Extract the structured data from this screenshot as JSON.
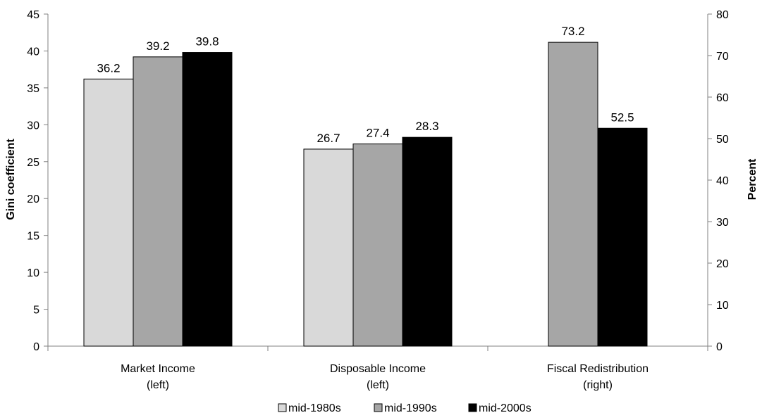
{
  "chart_data": {
    "type": "bar",
    "categories": [
      {
        "line1": "Market Income",
        "line2": "(left)",
        "axis": "left"
      },
      {
        "line1": "Disposable Income",
        "line2": "(left)",
        "axis": "left"
      },
      {
        "line1": "Fiscal Redistribution",
        "line2": "(right)",
        "axis": "right"
      }
    ],
    "series": [
      {
        "name": "mid-1980s",
        "color": "#d9d9d9",
        "values": [
          36.2,
          26.7,
          null
        ]
      },
      {
        "name": "mid-1990s",
        "color": "#a6a6a6",
        "values": [
          39.2,
          27.4,
          73.2
        ]
      },
      {
        "name": "mid-2000s",
        "color": "#000000",
        "values": [
          39.8,
          28.3,
          52.5
        ]
      }
    ],
    "ylabel_left": "Gini coefficient",
    "ylabel_right": "Percent",
    "ylim_left": [
      0,
      45
    ],
    "yticks_left": [
      0,
      5,
      10,
      15,
      20,
      25,
      30,
      35,
      40,
      45
    ],
    "ylim_right": [
      0,
      80
    ],
    "yticks_right": [
      0,
      10,
      20,
      30,
      40,
      50,
      60,
      70,
      80
    ],
    "grid": false,
    "legend_position": "bottom"
  }
}
